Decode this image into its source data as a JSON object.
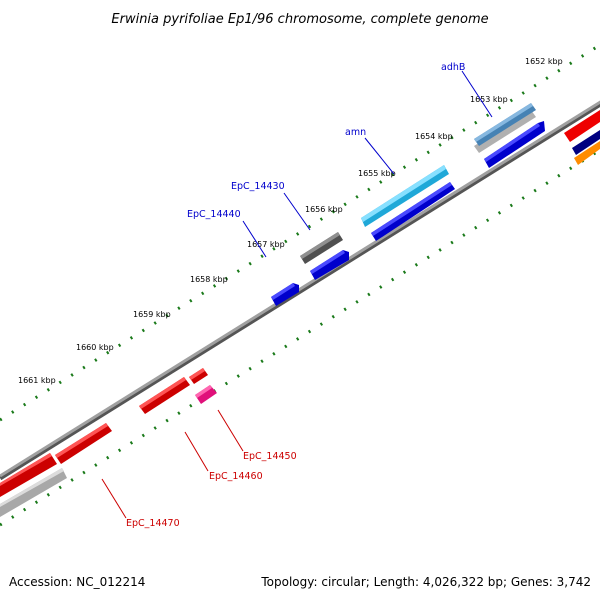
{
  "title": "Erwinia pyrifoliae Ep1/96 chromosome, complete genome",
  "footer": {
    "accession": "Accession: NC_012214",
    "summary": "Topology: circular; Length: 4,026,322 bp; Genes: 3,742"
  },
  "colors": {
    "backbone": "#808080",
    "tick_dots": "#1a7a1a",
    "forward_label": "#0000cc",
    "reverse_label": "#cc0000",
    "forward_strand_gene": "#0000ee",
    "reverse_strand_gene": "#ee0000"
  },
  "ticks": [
    {
      "label": "1652 kbp"
    },
    {
      "label": "1653 kbp"
    },
    {
      "label": "1654 kbp"
    },
    {
      "label": "1655 kbp"
    },
    {
      "label": "1656 kbp"
    },
    {
      "label": "1657 kbp"
    },
    {
      "label": "1658 kbp"
    },
    {
      "label": "1659 kbp"
    },
    {
      "label": "1660 kbp"
    },
    {
      "label": "1661 kbp"
    }
  ],
  "gene_labels": {
    "adhB": "adhB",
    "amn": "amn",
    "EpC_14430": "EpC_14430",
    "EpC_14440": "EpC_14440",
    "EpC_14450": "EpC_14450",
    "EpC_14460": "EpC_14460",
    "EpC_14470": "EpC_14470"
  },
  "features": [
    {
      "name": "adhB-cog",
      "color": "#4682b4"
    },
    {
      "name": "adhB-gene",
      "color": "#0000ee"
    },
    {
      "name": "amn-cog",
      "color": "#00bfff"
    },
    {
      "name": "amn-gene",
      "color": "#0000ee"
    },
    {
      "name": "EpC_14430-cog",
      "color": "#606060"
    },
    {
      "name": "EpC_14430-gene",
      "color": "#0000ee"
    },
    {
      "name": "EpC_14440-gene",
      "color": "#0000ee"
    },
    {
      "name": "EpC_14450-cog",
      "color": "#ff1493"
    },
    {
      "name": "EpC_14450-gene",
      "color": "#ee0000"
    },
    {
      "name": "EpC_14460-gene",
      "color": "#ee0000"
    },
    {
      "name": "EpC_14470-gene",
      "color": "#ee0000"
    },
    {
      "name": "EpC_14470-cog",
      "color": "#b0b0b0"
    }
  ]
}
